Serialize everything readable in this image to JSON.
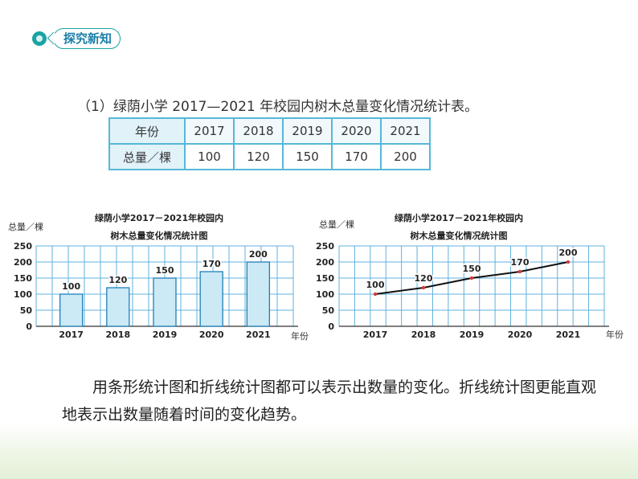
{
  "header": {
    "tag_label": "探究新知"
  },
  "table": {
    "caption": "（1）绿荫小学 2017—2021 年校园内树木总量变化情况统计表。",
    "row1_head": "年份",
    "row2_head": "总量／棵",
    "years": [
      "2017",
      "2018",
      "2019",
      "2020",
      "2021"
    ],
    "totals": [
      "100",
      "120",
      "150",
      "170",
      "200"
    ]
  },
  "chart_data": [
    {
      "type": "bar",
      "title_line1": "绿荫小学2017－2021年校园内",
      "title_line2": "树木总量变化情况统计图",
      "ylabel": "总量／棵",
      "xlabel": "年份",
      "categories": [
        "2017",
        "2018",
        "2019",
        "2020",
        "2021"
      ],
      "values": [
        100,
        120,
        150,
        170,
        200
      ],
      "yticks": [
        0,
        50,
        100,
        150,
        200,
        250
      ],
      "ylim": [
        0,
        250
      ],
      "grid": true,
      "bar_color": "#cce9f6",
      "bar_stroke": "#1f7fb8"
    },
    {
      "type": "line",
      "title_line1": "绿荫小学2017－2021年校园内",
      "title_line2": "树木总量变化情况统计图",
      "ylabel": "总量／棵",
      "xlabel": "年份",
      "categories": [
        "2017",
        "2018",
        "2019",
        "2020",
        "2021"
      ],
      "values": [
        100,
        120,
        150,
        170,
        200
      ],
      "yticks": [
        0,
        50,
        100,
        150,
        200,
        250
      ],
      "ylim": [
        0,
        250
      ],
      "grid": true,
      "line_color": "#111111",
      "marker_color": "#d23c3c"
    }
  ],
  "paragraph": "用条形统计图和折线统计图都可以表示出数量的变化。折线统计图更能直观地表示出数量随着时间的变化趋势。",
  "colors": {
    "accent": "#1aa3a3",
    "table_border": "#56b8d8",
    "grid": "#5fb0dc"
  }
}
